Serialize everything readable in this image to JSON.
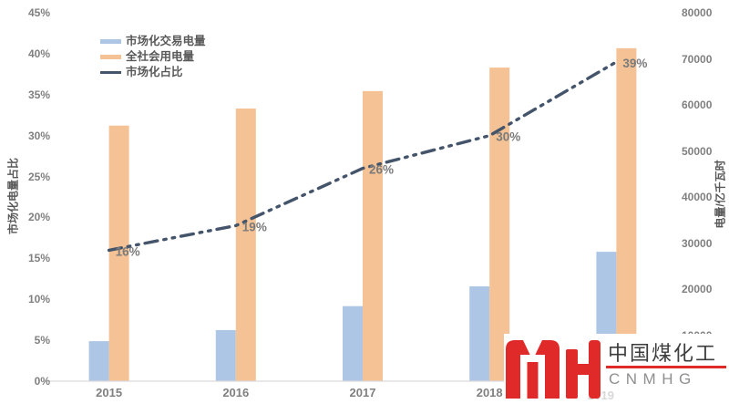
{
  "chart_data": {
    "type": "combo-bar-line",
    "categories": [
      "2015",
      "2016",
      "2017",
      "2018",
      "2019"
    ],
    "series": [
      {
        "name": "市场化交易电量",
        "type": "bar",
        "axis": "right",
        "color": "#AEC6E6",
        "values": [
          8700,
          11100,
          16300,
          20600,
          28100
        ]
      },
      {
        "name": "全社会用电量",
        "type": "bar",
        "axis": "right",
        "color": "#F4C294",
        "values": [
          55500,
          59200,
          63000,
          68100,
          72300
        ]
      },
      {
        "name": "市场化占比",
        "type": "line",
        "axis": "left",
        "color": "#44546A",
        "values": [
          16,
          19,
          26,
          30,
          39
        ],
        "labels": [
          "16%",
          "19%",
          "26%",
          "30%",
          "39%"
        ]
      }
    ],
    "left_axis": {
      "title": "市场化电量占比",
      "min": 0,
      "max": 45,
      "step": 5,
      "ticks": [
        "0%",
        "5%",
        "10%",
        "15%",
        "20%",
        "25%",
        "30%",
        "35%",
        "40%",
        "45%"
      ]
    },
    "right_axis": {
      "title": "电量/亿千瓦时",
      "min": 0,
      "max": 80000,
      "step": 10000,
      "ticks": [
        "0",
        "10000",
        "20000",
        "30000",
        "40000",
        "50000",
        "60000",
        "70000",
        "80000"
      ]
    },
    "legend_position": "top-left-inside",
    "grid": false
  },
  "watermark": {
    "glyph": "MYH",
    "company": "中国煤化工",
    "abbr": "CNMHG",
    "accent": "#E02A2A",
    "ghost_label": "2019"
  },
  "colors": {
    "bar_blue": "#AEC6E6",
    "bar_orange": "#F4C294",
    "line_dark": "#44546A",
    "tick_gray": "#808080",
    "legend_text": "#595959",
    "axis_line": "#D9D9D9",
    "data_label": "#7B7B7B"
  }
}
